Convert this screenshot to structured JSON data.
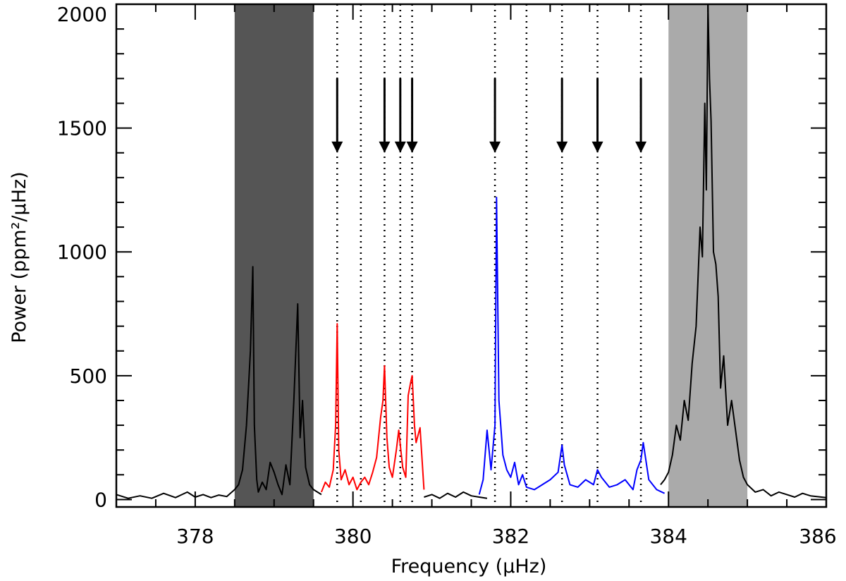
{
  "chart_data": {
    "type": "line",
    "xlabel": "Frequency (μHz)",
    "ylabel": "Power (ppm²/μHz)",
    "xlim": [
      377,
      386
    ],
    "ylim": [
      -30,
      2000
    ],
    "x_ticks": [
      {
        "value": 378,
        "label": "378"
      },
      {
        "value": 380,
        "label": "380"
      },
      {
        "value": 382,
        "label": "382"
      },
      {
        "value": 384,
        "label": "384"
      },
      {
        "value": 386,
        "label": "386"
      }
    ],
    "y_ticks": [
      {
        "value": 0,
        "label": "0"
      },
      {
        "value": 500,
        "label": "500"
      },
      {
        "value": 1000,
        "label": "1000"
      },
      {
        "value": 1500,
        "label": "1500"
      },
      {
        "value": 2000,
        "label": "2000"
      }
    ],
    "shaded_regions": [
      {
        "x0": 378.5,
        "x1": 379.5,
        "color": "#555555"
      },
      {
        "x0": 384.0,
        "x1": 385.0,
        "color": "#aaaaaa"
      }
    ],
    "vertical_dotted_lines": [
      379.8,
      380.1,
      380.4,
      380.6,
      380.75,
      381.8,
      382.2,
      382.65,
      383.1,
      383.65
    ],
    "arrows": [
      {
        "x": 379.8,
        "y_top": 1700,
        "y_bottom": 1400
      },
      {
        "x": 380.4,
        "y_top": 1700,
        "y_bottom": 1400
      },
      {
        "x": 380.6,
        "y_top": 1700,
        "y_bottom": 1400
      },
      {
        "x": 380.75,
        "y_top": 1700,
        "y_bottom": 1400
      },
      {
        "x": 381.8,
        "y_top": 1700,
        "y_bottom": 1400
      },
      {
        "x": 382.65,
        "y_top": 1700,
        "y_bottom": 1400
      },
      {
        "x": 383.1,
        "y_top": 1700,
        "y_bottom": 1400
      },
      {
        "x": 383.65,
        "y_top": 1700,
        "y_bottom": 1400
      }
    ],
    "series": [
      {
        "color": "#000000",
        "segments": [
          {
            "x": [
              377.0,
              377.15,
              377.3,
              377.45,
              377.6,
              377.75,
              377.9,
              378.0,
              378.1,
              378.2,
              378.3,
              378.4,
              378.5,
              378.55,
              378.6,
              378.65,
              378.7,
              378.73,
              378.75,
              378.78,
              378.8,
              378.85,
              378.9,
              378.95,
              379.0,
              379.05,
              379.1,
              379.15,
              379.2,
              379.25,
              379.3,
              379.33,
              379.36,
              379.4,
              379.45,
              379.5,
              379.55,
              379.6
            ],
            "y": [
              20,
              5,
              15,
              5,
              25,
              8,
              30,
              10,
              20,
              8,
              18,
              12,
              40,
              60,
              120,
              300,
              600,
              940,
              300,
              80,
              30,
              70,
              40,
              150,
              110,
              60,
              20,
              140,
              60,
              400,
              790,
              250,
              400,
              130,
              60,
              40,
              30,
              20
            ]
          },
          {
            "x": [
              380.9,
              381.0,
              381.1,
              381.2,
              381.3,
              381.4,
              381.5,
              381.6,
              381.7
            ],
            "y": [
              10,
              20,
              5,
              25,
              10,
              30,
              15,
              10,
              5
            ]
          },
          {
            "x": [
              383.9,
              383.95,
              384.0,
              384.05,
              384.1,
              384.15,
              384.2,
              384.25,
              384.3,
              384.35,
              384.4,
              384.43,
              384.46,
              384.48,
              384.5,
              384.52,
              384.54,
              384.57,
              384.6,
              384.63,
              384.66,
              384.7,
              384.75,
              384.8,
              384.85,
              384.9,
              384.95,
              385.0,
              385.1,
              385.2,
              385.3,
              385.4,
              385.5,
              385.6,
              385.7,
              385.8,
              386.0
            ],
            "y": [
              60,
              80,
              110,
              180,
              300,
              240,
              400,
              320,
              550,
              700,
              1100,
              980,
              1600,
              1250,
              2000,
              1700,
              1530,
              1000,
              950,
              820,
              450,
              580,
              300,
              400,
              280,
              160,
              90,
              60,
              30,
              40,
              15,
              30,
              20,
              10,
              25,
              15,
              8
            ]
          }
        ]
      },
      {
        "color": "#ff0000",
        "segments": [
          {
            "x": [
              379.6,
              379.65,
              379.7,
              379.75,
              379.78,
              379.8,
              379.82,
              379.85,
              379.9,
              379.95,
              380.0,
              380.05,
              380.1,
              380.15,
              380.2,
              380.25,
              380.3,
              380.35,
              380.38,
              380.4,
              380.43,
              380.46,
              380.5,
              380.55,
              380.58,
              380.6,
              380.63,
              380.67,
              380.7,
              380.73,
              380.75,
              380.78,
              380.8,
              380.85,
              380.9
            ],
            "y": [
              30,
              70,
              50,
              120,
              300,
              710,
              200,
              80,
              120,
              60,
              90,
              40,
              70,
              90,
              60,
              110,
              170,
              330,
              400,
              540,
              250,
              130,
              90,
              200,
              280,
              220,
              130,
              90,
              420,
              470,
              500,
              300,
              230,
              290,
              40
            ]
          }
        ]
      },
      {
        "color": "#0000ff",
        "segments": [
          {
            "x": [
              381.6,
              381.65,
              381.7,
              381.75,
              381.8,
              381.82,
              381.85,
              381.9,
              381.95,
              382.0,
              382.05,
              382.1,
              382.15,
              382.2,
              382.3,
              382.4,
              382.5,
              382.6,
              382.65,
              382.68,
              382.75,
              382.85,
              382.95,
              383.05,
              383.1,
              383.15,
              383.25,
              383.35,
              383.45,
              383.55,
              383.6,
              383.65,
              383.68,
              383.75,
              383.85,
              383.95
            ],
            "y": [
              20,
              80,
              280,
              120,
              300,
              1220,
              400,
              180,
              120,
              90,
              150,
              60,
              100,
              50,
              40,
              60,
              80,
              110,
              220,
              140,
              60,
              50,
              80,
              60,
              120,
              90,
              50,
              60,
              80,
              40,
              120,
              160,
              230,
              80,
              40,
              25
            ]
          }
        ]
      }
    ]
  }
}
